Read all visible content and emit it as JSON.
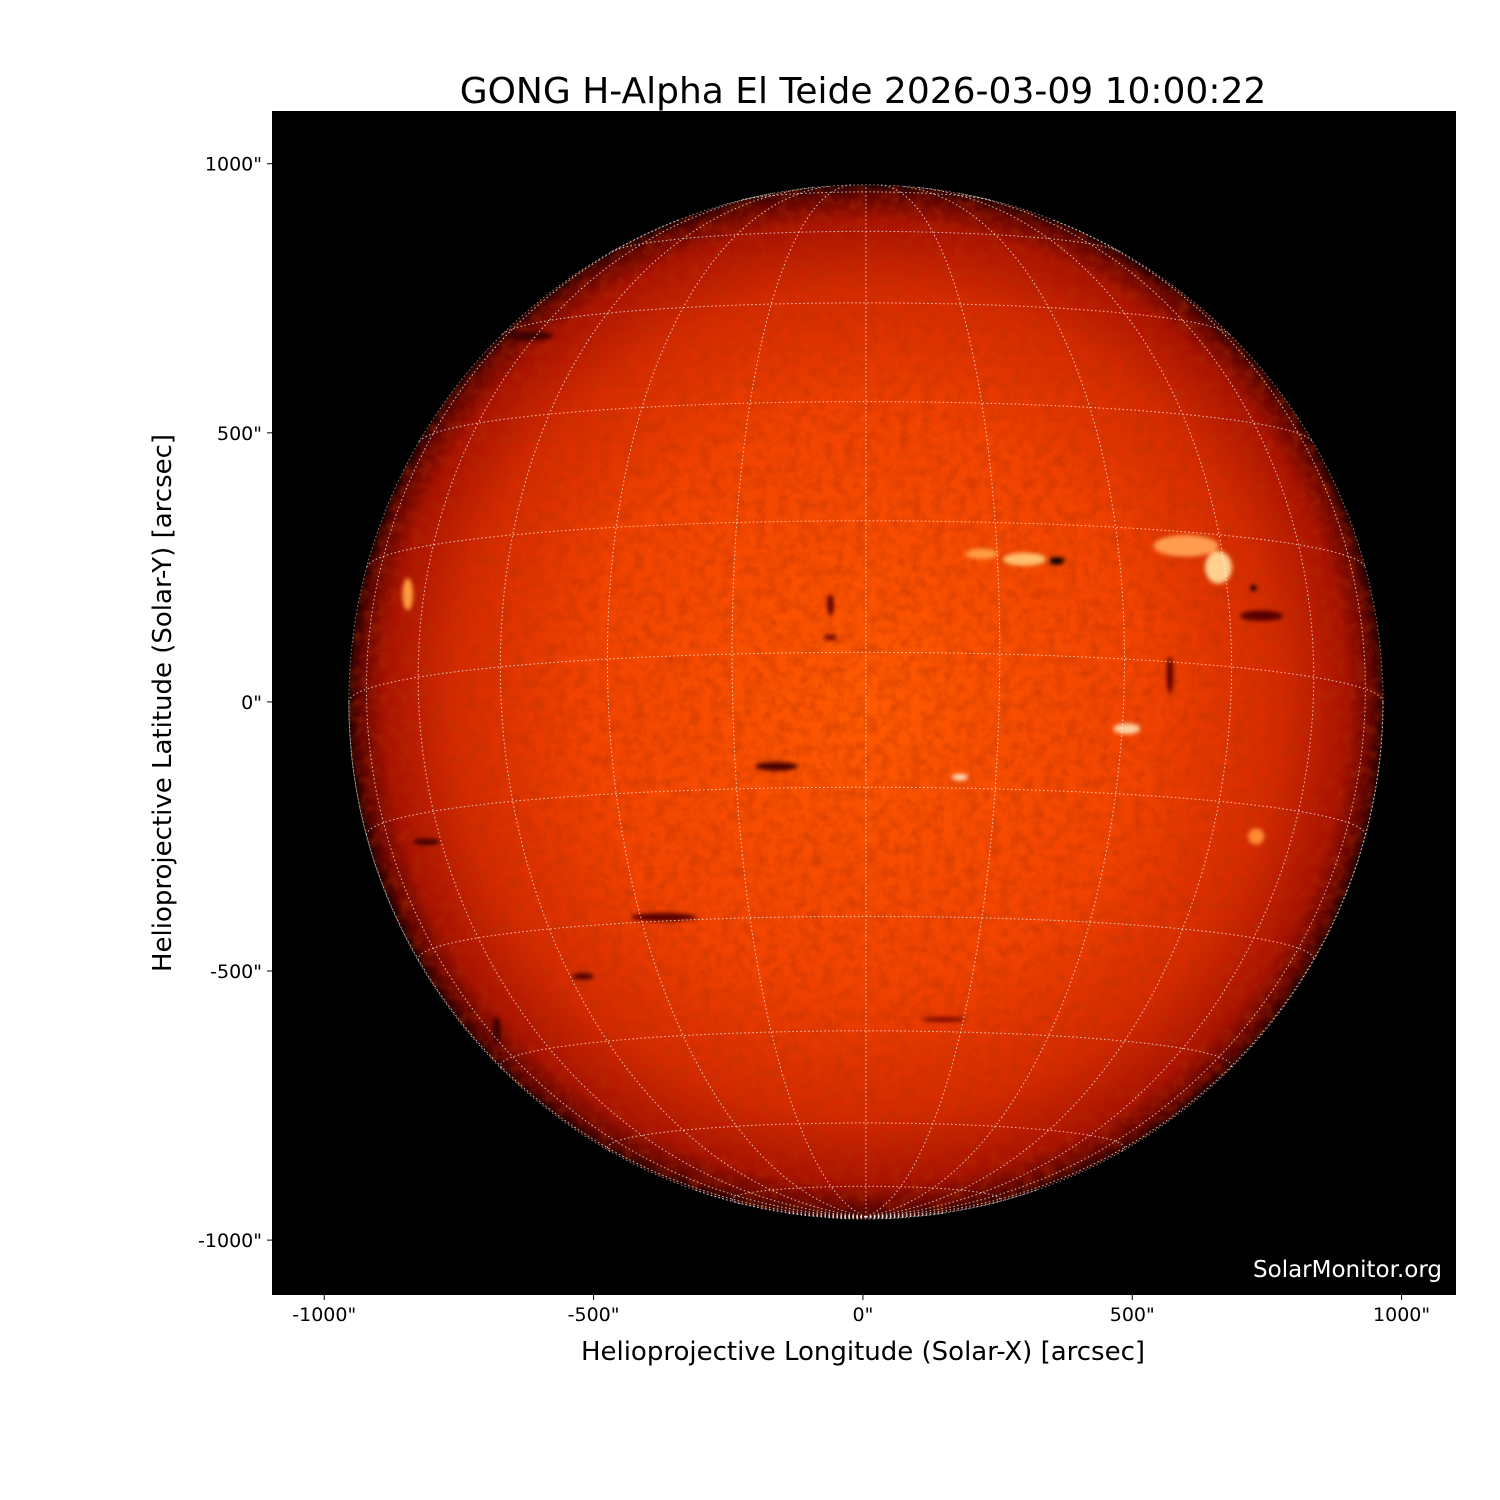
{
  "chart_data": {
    "type": "image",
    "title": "GONG H-Alpha El Teide 2026-03-09 10:00:22",
    "xlabel": "Helioprojective Longitude (Solar-X) [arcsec]",
    "ylabel": "Helioprojective Latitude (Solar-Y) [arcsec]",
    "xlim": [
      -1097,
      1101
    ],
    "ylim": [
      -1102,
      1098
    ],
    "xticks": [
      -1000,
      -500,
      0,
      500,
      1000
    ],
    "xtick_labels": [
      "-1000\"",
      "-500\"",
      "0\"",
      "500\"",
      "1000\""
    ],
    "yticks": [
      1000,
      500,
      0,
      -500,
      -1000
    ],
    "ytick_labels": [
      "1000\"",
      "500\"",
      "0\"",
      "-500\"",
      "-1000\""
    ],
    "solar_radius_arcsec": 960,
    "grid": "heliographic lat/lon every 15 deg, dotted white",
    "colormap": "black-red-orange-white (H-alpha)",
    "background_color": "#000000",
    "watermark": "SolarMonitor.org"
  }
}
